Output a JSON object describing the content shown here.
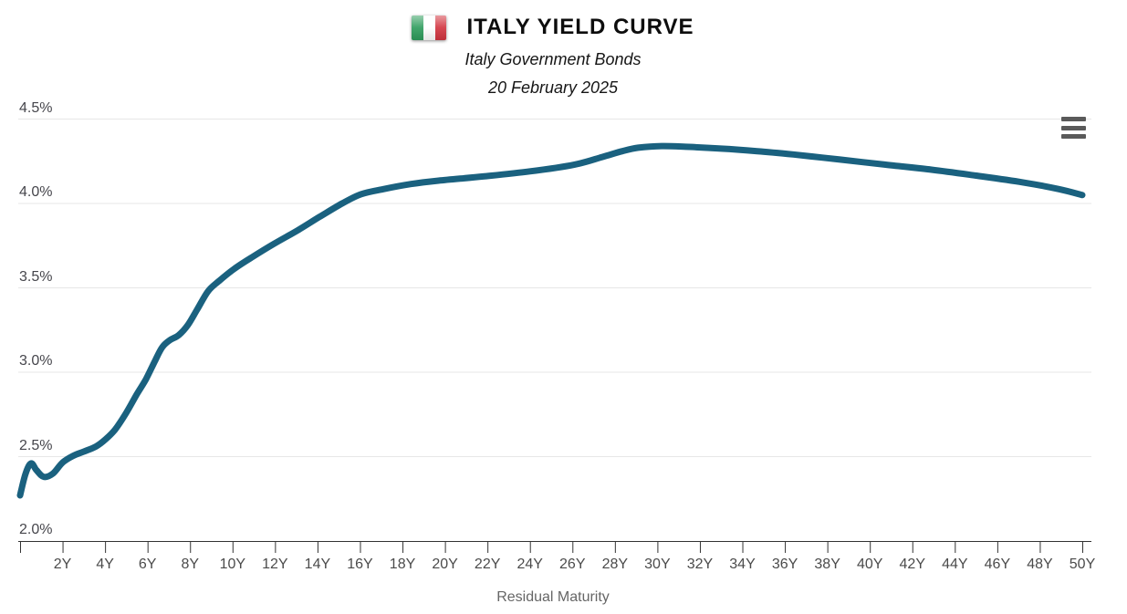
{
  "header": {
    "title": "ITALY YIELD CURVE",
    "subtitle": "Italy Government Bonds",
    "date": "20 February 2025",
    "flag": {
      "icon": "italy-flag-icon",
      "green": "#2E9C5C",
      "white": "#FFFFFF",
      "red": "#D2343F"
    }
  },
  "controls": {
    "menu_icon": "hamburger-menu-icon"
  },
  "chart_data": {
    "type": "line",
    "title": "ITALY YIELD CURVE",
    "subtitle": "Italy Government Bonds",
    "date": "20 February 2025",
    "xlabel": "Residual Maturity",
    "ylabel": "",
    "xlim": [
      0,
      50
    ],
    "ylim": [
      2.0,
      4.5
    ],
    "grid": "horizontal",
    "legend": "none",
    "grid_color": "#E7E7E7",
    "axis_color": "#333333",
    "y_ticks": [
      {
        "value": 2.0,
        "label": "2.0%"
      },
      {
        "value": 2.5,
        "label": "2.5%"
      },
      {
        "value": 3.0,
        "label": "3.0%"
      },
      {
        "value": 3.5,
        "label": "3.5%"
      },
      {
        "value": 4.0,
        "label": "4.0%"
      },
      {
        "value": 4.5,
        "label": "4.5%"
      }
    ],
    "x_tick_interval_years": 2,
    "x_tick_labels": [
      "2Y",
      "4Y",
      "6Y",
      "8Y",
      "10Y",
      "12Y",
      "14Y",
      "16Y",
      "18Y",
      "20Y",
      "22Y",
      "24Y",
      "26Y",
      "28Y",
      "30Y",
      "32Y",
      "34Y",
      "36Y",
      "38Y",
      "40Y",
      "42Y",
      "44Y",
      "46Y",
      "48Y",
      "50Y"
    ],
    "series": [
      {
        "name": "Italy Government Bonds",
        "color": "#1A617F",
        "points": [
          [
            0,
            2.27
          ],
          [
            0.26,
            2.4
          ],
          [
            0.52,
            2.46
          ],
          [
            0.77,
            2.42
          ],
          [
            1.12,
            2.38
          ],
          [
            1.55,
            2.4
          ],
          [
            2.0,
            2.465
          ],
          [
            2.5,
            2.505
          ],
          [
            3.0,
            2.53
          ],
          [
            3.57,
            2.56
          ],
          [
            4.0,
            2.6
          ],
          [
            4.47,
            2.66
          ],
          [
            5.0,
            2.76
          ],
          [
            5.5,
            2.87
          ],
          [
            5.93,
            2.96
          ],
          [
            6.36,
            3.07
          ],
          [
            6.7,
            3.15
          ],
          [
            7.05,
            3.19
          ],
          [
            7.47,
            3.22
          ],
          [
            7.9,
            3.28
          ],
          [
            8.33,
            3.37
          ],
          [
            8.85,
            3.48
          ],
          [
            9.36,
            3.54
          ],
          [
            10.05,
            3.61
          ],
          [
            10.9,
            3.68
          ],
          [
            11.94,
            3.76
          ],
          [
            13.06,
            3.84
          ],
          [
            14.09,
            3.92
          ],
          [
            15.16,
            4.0
          ],
          [
            16.06,
            4.055
          ],
          [
            17.1,
            4.085
          ],
          [
            18.4,
            4.115
          ],
          [
            19.7,
            4.135
          ],
          [
            21.8,
            4.16
          ],
          [
            24.0,
            4.19
          ],
          [
            26.1,
            4.23
          ],
          [
            27.4,
            4.275
          ],
          [
            28.35,
            4.31
          ],
          [
            29.1,
            4.33
          ],
          [
            30.2,
            4.34
          ],
          [
            31.5,
            4.335
          ],
          [
            33.0,
            4.325
          ],
          [
            34.7,
            4.31
          ],
          [
            36.4,
            4.29
          ],
          [
            38.6,
            4.26
          ],
          [
            40.7,
            4.23
          ],
          [
            42.9,
            4.2
          ],
          [
            45.0,
            4.165
          ],
          [
            47.2,
            4.125
          ],
          [
            48.9,
            4.085
          ],
          [
            50.0,
            4.05
          ]
        ]
      }
    ]
  }
}
